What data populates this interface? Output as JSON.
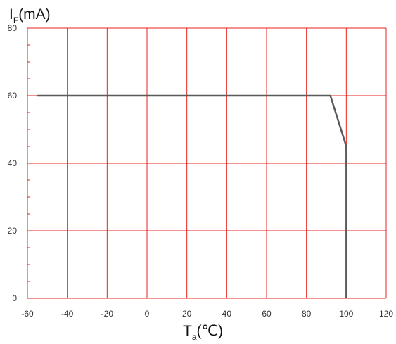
{
  "chart_data": {
    "type": "line",
    "title": "",
    "ylabel": {
      "main": "I",
      "sub": "F",
      "unit": "(mA)"
    },
    "xlabel": {
      "main": "T",
      "sub": "a",
      "unit": "(℃)"
    },
    "xlim": [
      -60,
      120
    ],
    "ylim": [
      0,
      80
    ],
    "x_ticks": [
      -60,
      -40,
      -20,
      0,
      20,
      40,
      60,
      80,
      100,
      120
    ],
    "y_ticks": [
      0,
      20,
      40,
      60,
      80
    ],
    "y_minor_step": 5,
    "grid": true,
    "grid_color": "#e8201c",
    "line_color": "#5a5a5a",
    "series": [
      {
        "name": "",
        "x": [
          -55,
          92,
          100,
          100
        ],
        "y": [
          60,
          60,
          45,
          0
        ]
      }
    ]
  }
}
